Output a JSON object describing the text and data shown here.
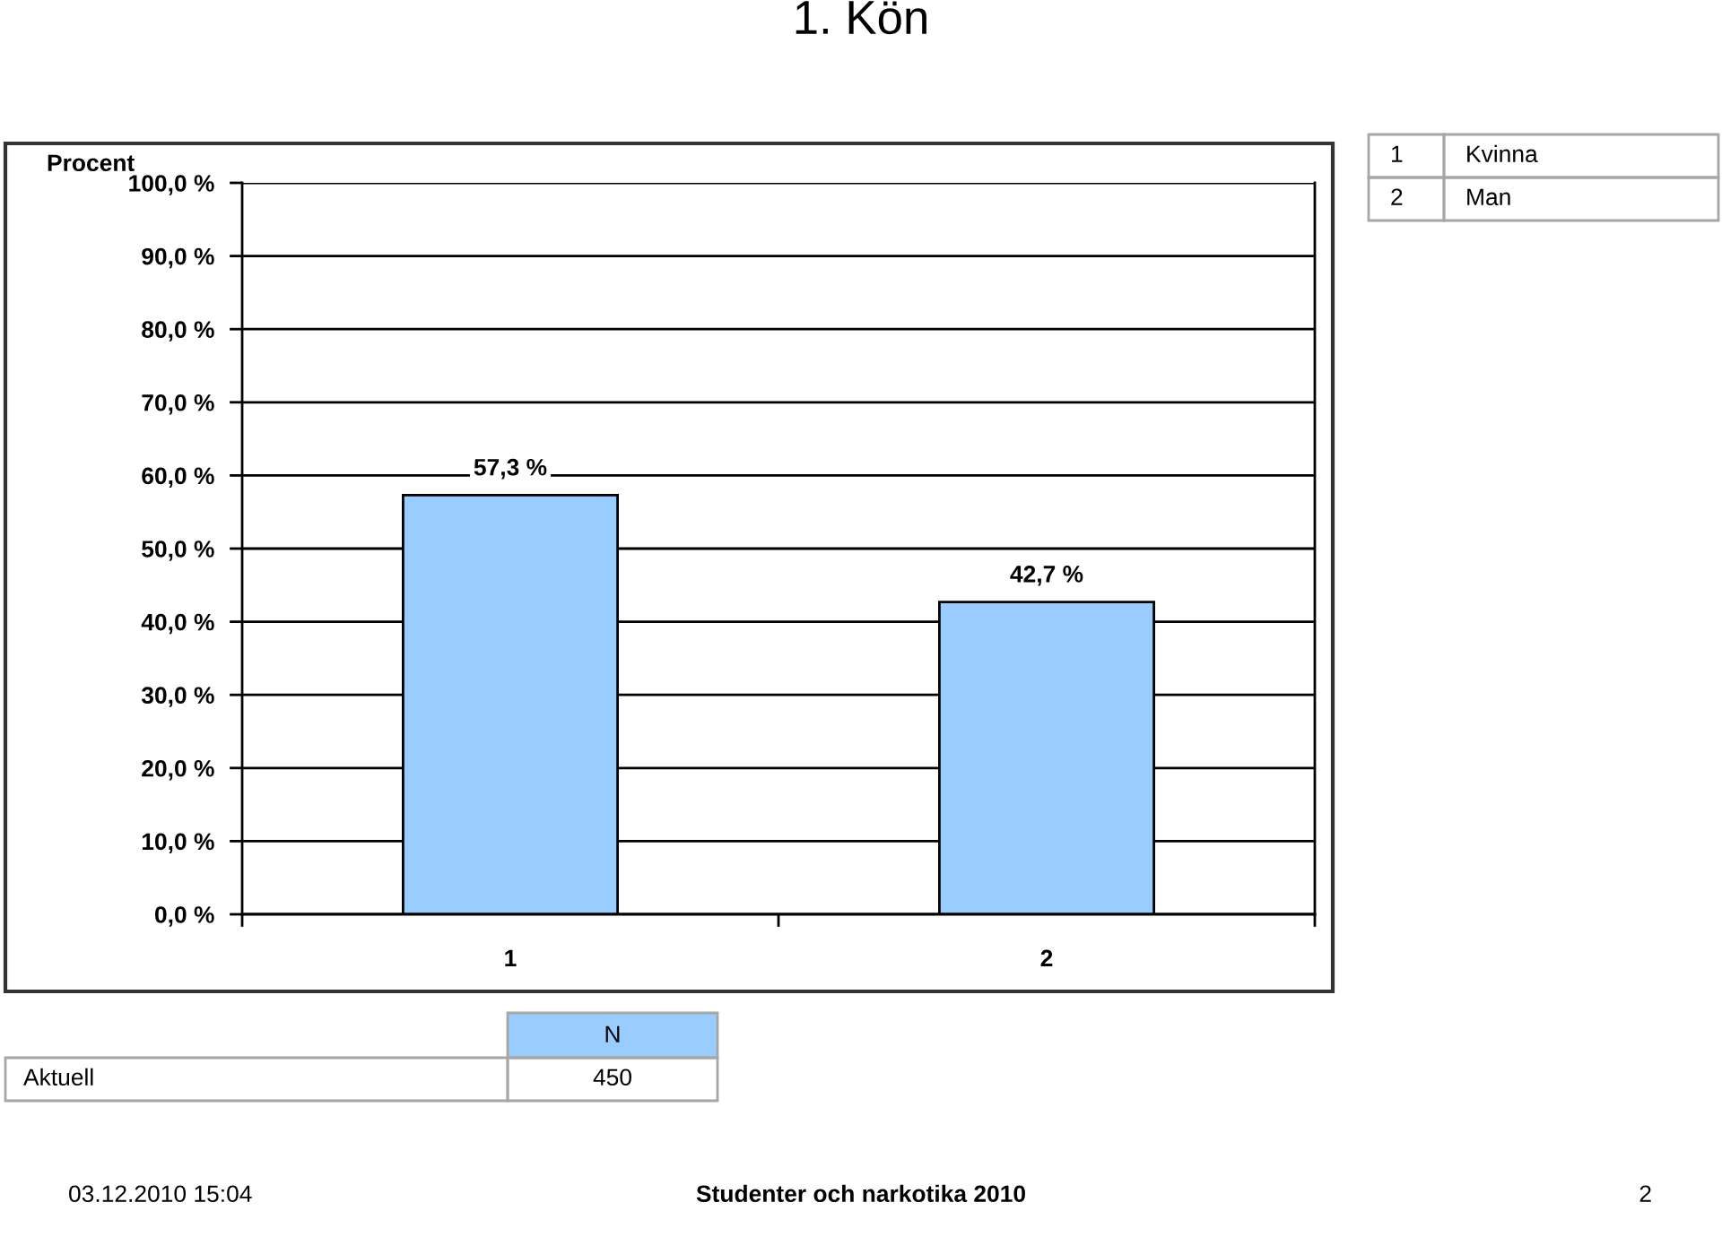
{
  "chart_data": {
    "type": "bar",
    "title": "1. Kön",
    "ylabel": "Procent",
    "categories": [
      "1",
      "2"
    ],
    "values": [
      57.3,
      42.7
    ],
    "color": "#99ccff",
    "value_labels": [
      "57,3 %",
      "42,7 %"
    ],
    "ylim": [
      0,
      100
    ],
    "yticks": [
      {
        "value": 0,
        "label": "0,0 %"
      },
      {
        "value": 10,
        "label": "10,0 %"
      },
      {
        "value": 20,
        "label": "20,0 %"
      },
      {
        "value": 30,
        "label": "30,0 %"
      },
      {
        "value": 40,
        "label": "40,0 %"
      },
      {
        "value": 50,
        "label": "50,0 %"
      },
      {
        "value": 60,
        "label": "60,0 %"
      },
      {
        "value": 70,
        "label": "70,0 %"
      },
      {
        "value": 80,
        "label": "80,0 %"
      },
      {
        "value": 90,
        "label": "90,0 %"
      },
      {
        "value": 100,
        "label": "100,0 %"
      }
    ],
    "grid": "y",
    "annotations": [
      "1",
      "Kvinna",
      "2",
      "Man",
      "N",
      "Aktuell",
      "450",
      "03.12.2010 15:04",
      "Studenter och narkotika 2010",
      "2"
    ]
  }
}
